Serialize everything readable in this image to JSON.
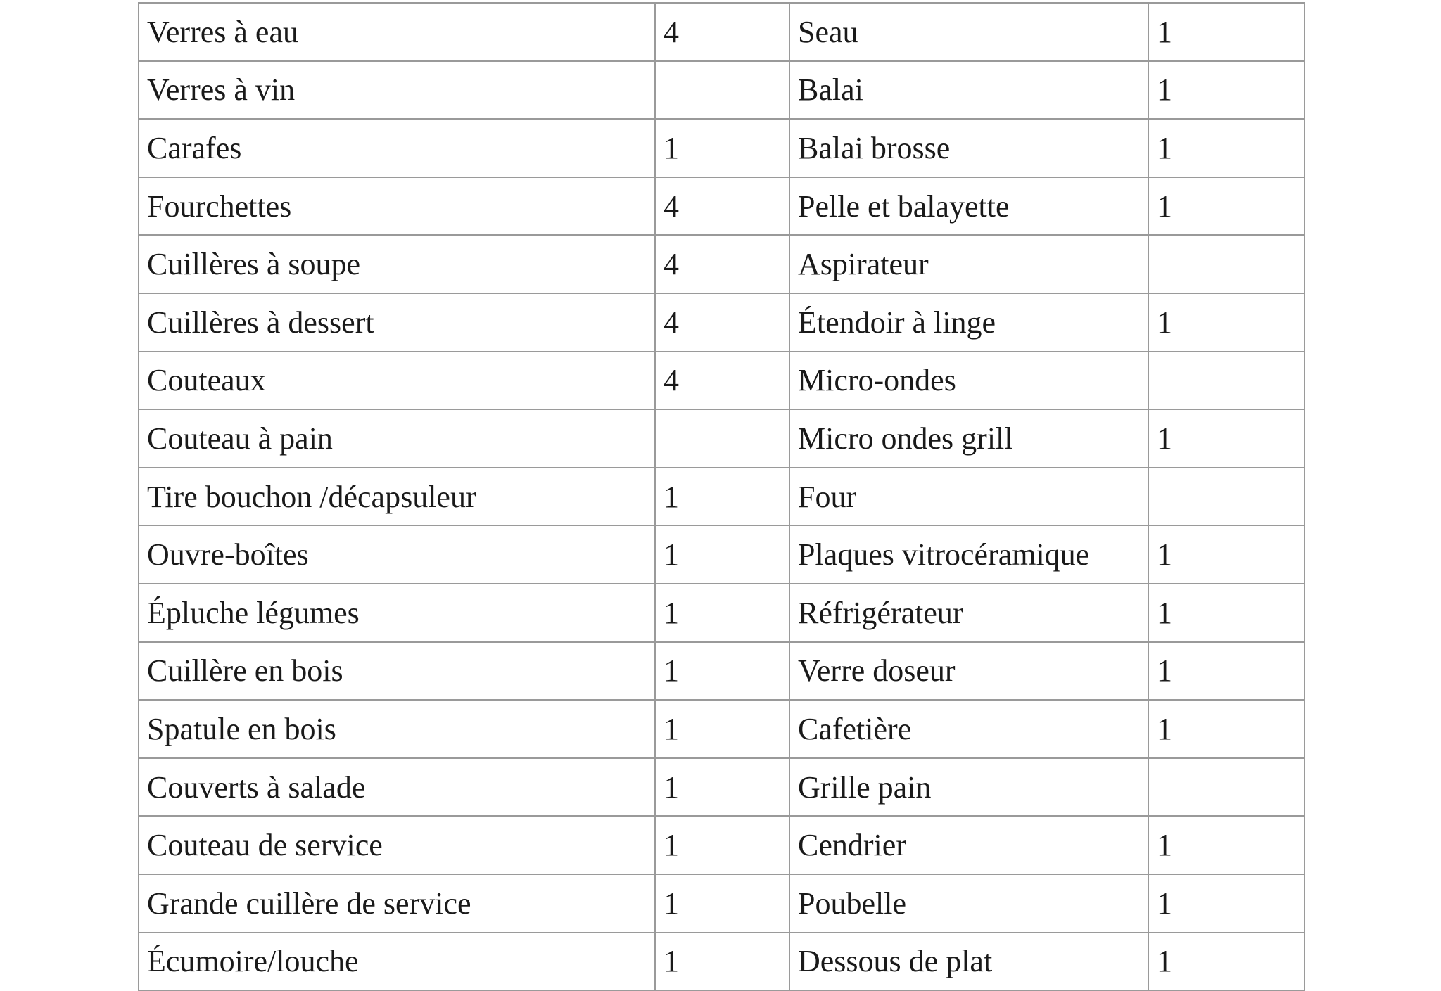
{
  "table": {
    "rows": [
      [
        "Verres à eau",
        4,
        "Seau",
        1
      ],
      [
        "Verres à vin",
        null,
        "Balai",
        1
      ],
      [
        "Carafes",
        1,
        "Balai brosse",
        1
      ],
      [
        "Fourchettes",
        4,
        "Pelle et balayette",
        1
      ],
      [
        "Cuillères à soupe",
        4,
        "Aspirateur",
        null
      ],
      [
        "Cuillères à dessert",
        4,
        "Étendoir à linge",
        1
      ],
      [
        "Couteaux",
        4,
        "Micro-ondes",
        null
      ],
      [
        "Couteau à pain",
        null,
        "Micro ondes grill",
        1
      ],
      [
        "Tire bouchon /décapsuleur",
        1,
        "Four",
        null
      ],
      [
        "Ouvre-boîtes",
        1,
        "Plaques vitrocéramique",
        1
      ],
      [
        "Épluche légumes",
        1,
        "Réfrigérateur",
        1
      ],
      [
        "Cuillère en bois",
        1,
        "Verre doseur",
        1
      ],
      [
        "Spatule en bois",
        1,
        "Cafetière",
        1
      ],
      [
        "Couverts à salade",
        1,
        "Grille pain",
        null
      ],
      [
        "Couteau de service",
        1,
        "Cendrier",
        1
      ],
      [
        "Grande cuillère de service",
        1,
        "Poubelle",
        1
      ],
      [
        "Écumoire/louche",
        1,
        "Dessous de plat",
        1
      ]
    ]
  }
}
